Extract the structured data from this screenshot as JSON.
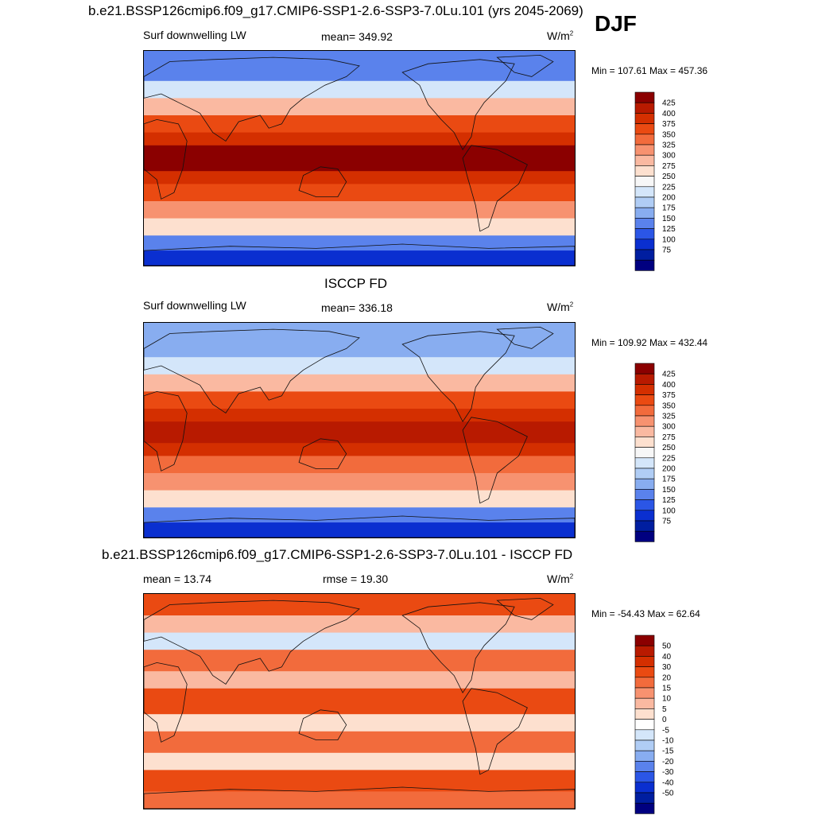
{
  "page": {
    "season": "DJF"
  },
  "chart_data": [
    {
      "type": "heatmap",
      "title": "b.e21.BSSP126cmip6.f09_g17.CMIP6-SSP1-2.6-SSP3-7.0Lu.101 (yrs 2045-2069)",
      "left_label": "Surf downwelling LW",
      "center_label": "mean= 349.92",
      "units": "W/m",
      "units_exp": "2",
      "minmax": "Min = 107.61 Max = 457.36",
      "colorbar": {
        "labels": [
          "425",
          "400",
          "375",
          "350",
          "325",
          "300",
          "275",
          "250",
          "225",
          "200",
          "175",
          "150",
          "125",
          "100",
          "75"
        ],
        "colors": [
          "#8b0000",
          "#b81a00",
          "#d42f00",
          "#ea4a12",
          "#f26b3c",
          "#f79270",
          "#fab9a1",
          "#fde0cf",
          "#f7f7f7",
          "#d4e6fa",
          "#b0cdf5",
          "#88adf0",
          "#5a82ec",
          "#2b56e6",
          "#0a2fd0",
          "#001ea0",
          "#000080"
        ]
      },
      "mean": 349.92,
      "min": 107.61,
      "max": 457.36
    },
    {
      "type": "heatmap",
      "title": "ISCCP FD",
      "left_label": "Surf downwelling LW",
      "center_label": "mean= 336.18",
      "units": "W/m",
      "units_exp": "2",
      "minmax": "Min = 109.92 Max = 432.44",
      "colorbar": {
        "labels": [
          "425",
          "400",
          "375",
          "350",
          "325",
          "300",
          "275",
          "250",
          "225",
          "200",
          "175",
          "150",
          "125",
          "100",
          "75"
        ],
        "colors": [
          "#8b0000",
          "#b81a00",
          "#d42f00",
          "#ea4a12",
          "#f26b3c",
          "#f79270",
          "#fab9a1",
          "#fde0cf",
          "#f7f7f7",
          "#d4e6fa",
          "#b0cdf5",
          "#88adf0",
          "#5a82ec",
          "#2b56e6",
          "#0a2fd0",
          "#001ea0",
          "#000080"
        ]
      },
      "mean": 336.18,
      "min": 109.92,
      "max": 432.44
    },
    {
      "type": "heatmap",
      "title": "b.e21.BSSP126cmip6.f09_g17.CMIP6-SSP1-2.6-SSP3-7.0Lu.101 - ISCCP FD",
      "left_label": "mean =  13.74",
      "center_label": "rmse =  19.30",
      "units": "W/m",
      "units_exp": "2",
      "minmax": "Min = -54.43 Max =  62.64",
      "colorbar": {
        "labels": [
          "50",
          "40",
          "30",
          "20",
          "15",
          "10",
          "5",
          "0",
          "-5",
          "-10",
          "-15",
          "-20",
          "-30",
          "-40",
          "-50"
        ],
        "colors": [
          "#8b0000",
          "#b81a00",
          "#d42f00",
          "#ea4a12",
          "#f26b3c",
          "#f79270",
          "#fab9a1",
          "#fde0cf",
          "#ffffff",
          "#d4e6fa",
          "#b0cdf5",
          "#88adf0",
          "#5a82ec",
          "#2b56e6",
          "#0a2fd0",
          "#001ea0",
          "#000080"
        ]
      },
      "mean": 13.74,
      "rmse": 19.3,
      "min": -54.43,
      "max": 62.64
    }
  ]
}
